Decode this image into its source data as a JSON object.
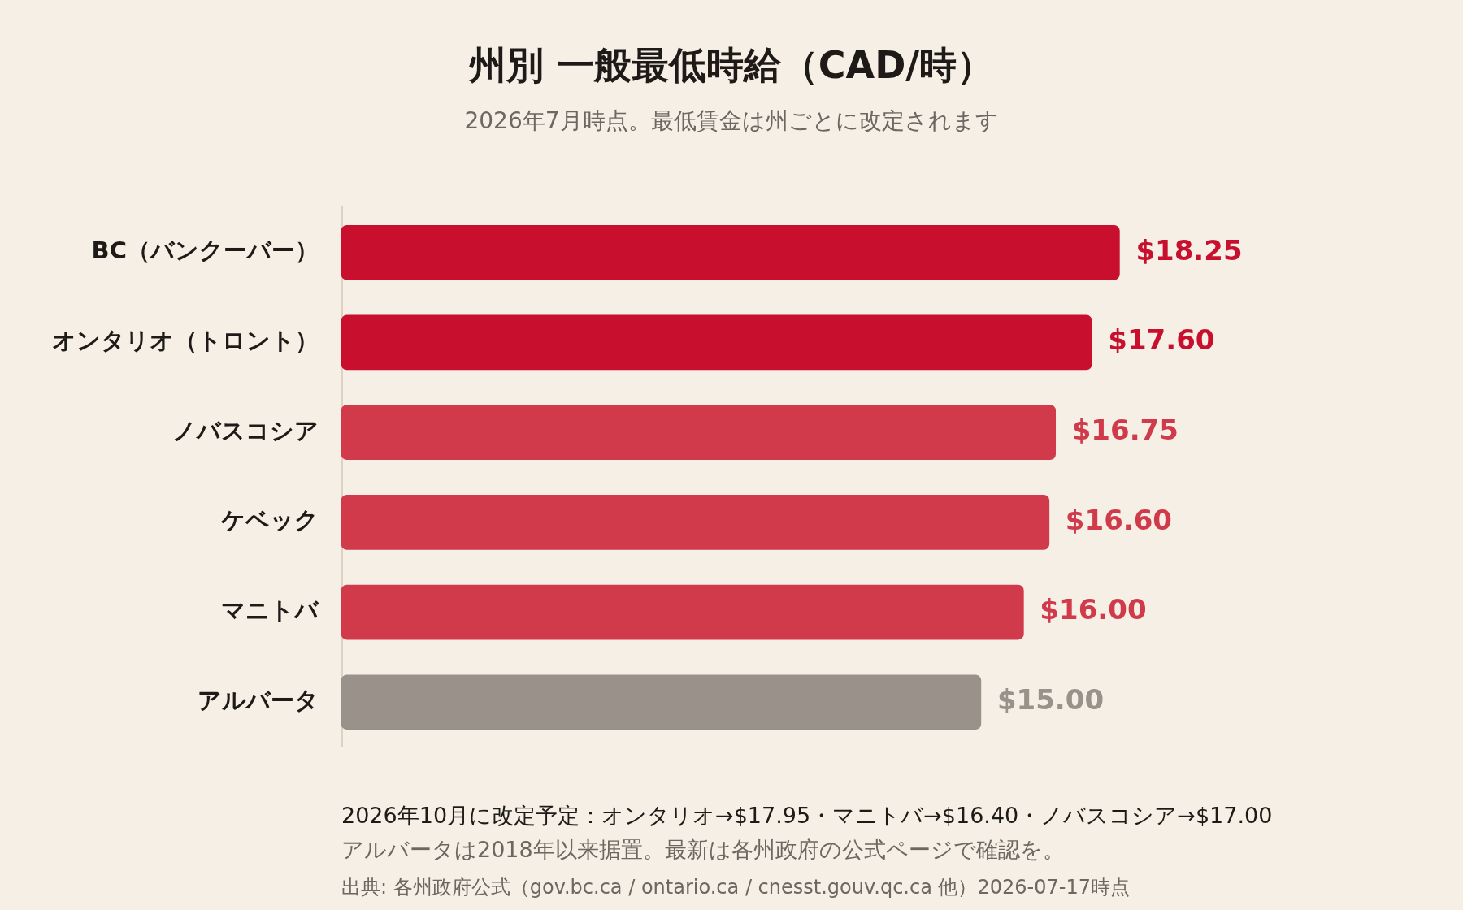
{
  "chart_data": {
    "type": "bar",
    "orientation": "horizontal",
    "title": "州別 一般最低時給（CAD/時）",
    "subtitle": "2026年7月時点。最低賃金は州ごとに改定されます",
    "categories": [
      "BC（バンクーバー）",
      "オンタリオ（トロント）",
      "ノバスコシア",
      "ケベック",
      "マニトバ",
      "アルバータ"
    ],
    "values": [
      18.25,
      17.6,
      16.75,
      16.6,
      16.0,
      15.0
    ],
    "colors": [
      "#c8102e",
      "#c8102e",
      "#d03a4a",
      "#d03a4a",
      "#d03a4a",
      "#9b918b"
    ],
    "value_labels": [
      "$18.25",
      "$17.60",
      "$16.75",
      "$16.60",
      "$16.00",
      "$15.00"
    ],
    "legend": false,
    "tick_labels": "y",
    "annotations": [
      "2026年10月に改定予定：オンタリオ→$17.95・マニトバ→$16.40・ノバスコシア→$17.00",
      "アルバータは2018年以来据置。最新は各州政府の公式ページで確認を。",
      "出典: 各州政府公式（gov.bc.ca / ontario.ca / cnesst.gouv.qc.ca 他）2026-07-17時点"
    ]
  }
}
